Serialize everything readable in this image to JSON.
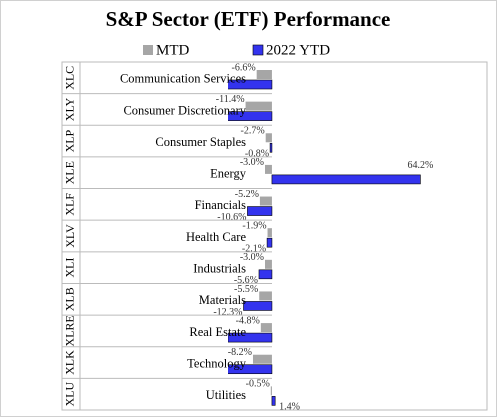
{
  "chart_data": {
    "type": "bar",
    "orientation": "horizontal",
    "title": "S&P Sector (ETF) Performance",
    "categories": [
      "Communication Services",
      "Consumer Discretionary",
      "Consumer Staples",
      "Energy",
      "Financials",
      "Health Care",
      "Industrials",
      "Materials",
      "Real Estate",
      "Technology",
      "Utilities"
    ],
    "tickers": [
      "XLC",
      "XLY",
      "XLP",
      "XLE",
      "XLF",
      "XLV",
      "XLI",
      "XLB",
      "XLRE",
      "XLK",
      "XLU"
    ],
    "series": [
      {
        "name": "MTD",
        "color": "#a6a6a6",
        "values": [
          -6.6,
          -11.4,
          -2.7,
          -3.0,
          -5.2,
          -1.9,
          -3.0,
          -5.5,
          -4.8,
          -8.2,
          -0.5
        ],
        "value_labels": [
          "-6.6%",
          "-11.4%",
          "-2.7%",
          "-3.0%",
          "-5.2%",
          "-1.9%",
          "-3.0%",
          "-5.5%",
          "-4.8%",
          "-8.2%",
          "-0.5%"
        ]
      },
      {
        "name": "2022 YTD",
        "color": "#3333ee",
        "values": [
          -20.0,
          -24.0,
          -0.8,
          64.2,
          -10.6,
          -2.1,
          -5.6,
          -12.3,
          -19.0,
          -20.0,
          1.4
        ],
        "value_labels": [
          null,
          null,
          "-0.8%",
          "64.2%",
          "-10.6%",
          "-2.1%",
          "-5.6%",
          "-12.3%",
          null,
          null,
          "1.4%"
        ]
      }
    ],
    "xlim": [
      -19,
      93
    ],
    "legend": "top"
  }
}
